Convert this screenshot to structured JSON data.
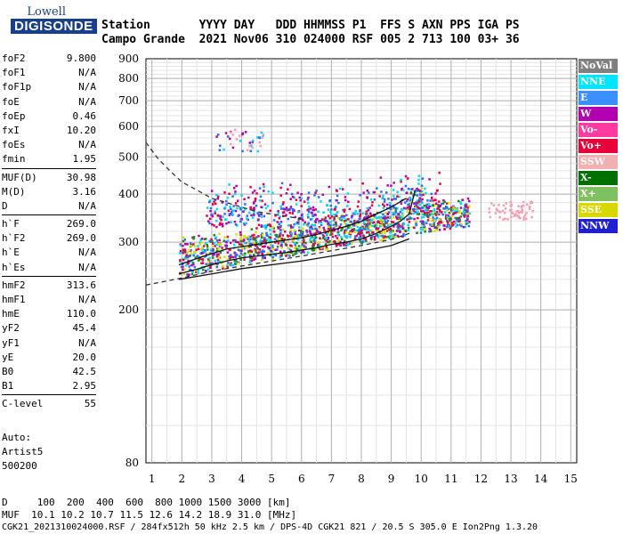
{
  "logo": {
    "line1": "Lowell",
    "line2": "DIGISONDE"
  },
  "header": {
    "line1": "Station       YYYY DAY   DDD HHMMSS P1  FFS S AXN PPS IGA PS",
    "line2": "Campo Grande  2021 Nov06 310 024000 RSF 005 2 713 100 03+ 36"
  },
  "params": [
    {
      "name": "foF2",
      "value": "9.800"
    },
    {
      "name": "foF1",
      "value": "N/A"
    },
    {
      "name": "foF1p",
      "value": "N/A"
    },
    {
      "name": "foE",
      "value": "N/A"
    },
    {
      "name": "foEp",
      "value": "0.46"
    },
    {
      "name": "fxI",
      "value": "10.20"
    },
    {
      "name": "foEs",
      "value": "N/A"
    },
    {
      "name": "fmin",
      "value": "1.95"
    },
    {
      "sep": true
    },
    {
      "name": "MUF(D)",
      "value": "30.98"
    },
    {
      "name": "M(D)",
      "value": "3.16"
    },
    {
      "name": "D",
      "value": "N/A"
    },
    {
      "sep": true
    },
    {
      "name": "h`F",
      "value": "269.0"
    },
    {
      "name": "h`F2",
      "value": "269.0"
    },
    {
      "name": "h`E",
      "value": "N/A"
    },
    {
      "name": "h`Es",
      "value": "N/A"
    },
    {
      "sep": true
    },
    {
      "name": "hmF2",
      "value": "313.6"
    },
    {
      "name": "hmF1",
      "value": "N/A"
    },
    {
      "name": "hmE",
      "value": "110.0"
    },
    {
      "name": "yF2",
      "value": "45.4"
    },
    {
      "name": "yF1",
      "value": "N/A"
    },
    {
      "name": "yE",
      "value": "20.0"
    },
    {
      "name": "B0",
      "value": "42.5"
    },
    {
      "name": "B1",
      "value": "2.95"
    },
    {
      "sep": true
    },
    {
      "name": "C-level",
      "value": "55"
    }
  ],
  "auto": {
    "line1": "Auto:",
    "line2": "Artist5",
    "line3": "500200"
  },
  "footer": {
    "line1": "D     100  200  400  600  800 1000 1500 3000 [km]",
    "line2": "MUF  10.1 10.2 10.7 11.5 12.6 14.2 18.9 31.0 [MHz]",
    "line3": "CGK21_2021310024000.RSF / 284fx512h 50 kHz 2.5 km / DPS-4D CGK21 821 / 20.5 S 305.0 E Ion2Png 1.3.20"
  },
  "legend": [
    {
      "label": "NoVal",
      "color": "#808080"
    },
    {
      "label": "NNE",
      "color": "#00e5ff"
    },
    {
      "label": "E",
      "color": "#3b8fff"
    },
    {
      "label": "W",
      "color": "#b000b0"
    },
    {
      "label": "Vo-",
      "color": "#ff3aa0"
    },
    {
      "label": "Vo+",
      "color": "#e8003a"
    },
    {
      "label": "SSW",
      "color": "#f2b0b0"
    },
    {
      "label": "X-",
      "color": "#007000"
    },
    {
      "label": "X+",
      "color": "#7fc060"
    },
    {
      "label": "SSE",
      "color": "#d8d800"
    },
    {
      "label": "NNW",
      "color": "#2020d0"
    }
  ],
  "chart_data": {
    "type": "scatter",
    "title": "",
    "xlabel": "",
    "ylabel": "",
    "xlim": [
      0.8,
      15.2
    ],
    "ylim": [
      80,
      900
    ],
    "xticks": [
      1,
      2,
      3,
      4,
      5,
      6,
      7,
      8,
      9,
      10,
      11,
      12,
      13,
      14,
      15
    ],
    "yticks": [
      80,
      200,
      300,
      400,
      500,
      600,
      700,
      800,
      900
    ],
    "log_y": true,
    "grid": true,
    "series": [
      {
        "name": "O-trace (virtual height)",
        "style": "solid",
        "x": [
          1.9,
          2.5,
          3.0,
          3.5,
          4.0,
          4.5,
          5.0,
          5.5,
          6.0,
          6.5,
          7.0,
          7.5,
          8.0,
          8.5,
          9.0,
          9.3,
          9.6,
          9.8
        ],
        "y": [
          248,
          255,
          262,
          268,
          273,
          276,
          279,
          282,
          286,
          290,
          296,
          300,
          306,
          316,
          330,
          340,
          355,
          410
        ]
      },
      {
        "name": "X-trace",
        "style": "solid",
        "x": [
          1.9,
          2.5,
          3.0,
          3.5,
          4.0,
          4.5,
          5.0,
          5.5,
          6.0,
          6.5,
          7.0,
          7.5,
          8.0,
          8.5,
          9.0,
          9.5
        ],
        "y": [
          262,
          272,
          280,
          288,
          292,
          296,
          300,
          304,
          308,
          314,
          322,
          330,
          340,
          355,
          370,
          390
        ]
      },
      {
        "name": "profile",
        "style": "solid",
        "x": [
          1.9,
          3,
          4,
          5,
          6,
          7,
          8,
          9,
          9.6
        ],
        "y": [
          240,
          248,
          256,
          262,
          268,
          276,
          284,
          294,
          306
        ]
      },
      {
        "name": "MUF upper",
        "style": "dashed",
        "x": [
          0.8,
          1.2,
          1.6,
          2.0,
          2.5,
          3.0,
          3.5,
          4.0,
          4.5,
          5.0,
          5.5,
          6.0
        ],
        "y": [
          545,
          495,
          460,
          430,
          410,
          390,
          380,
          370,
          360,
          355,
          350,
          345
        ]
      },
      {
        "name": "MUF lower",
        "style": "dashed",
        "x": [
          0.8,
          2,
          3,
          4,
          5,
          6,
          7,
          8,
          9,
          9.7
        ],
        "y": [
          232,
          242,
          252,
          260,
          268,
          276,
          285,
          294,
          305,
          318
        ]
      }
    ],
    "echo_clusters": [
      {
        "x": [
          1.9,
          11.6
        ],
        "y": [
          230,
          340
        ],
        "colors": [
          "yellow",
          "red",
          "blue",
          "magenta",
          "cyan",
          "green"
        ]
      },
      {
        "x": [
          2.8,
          10.6
        ],
        "y": [
          330,
          460
        ],
        "colors": [
          "blue",
          "magenta",
          "red",
          "cyan"
        ]
      },
      {
        "x": [
          3.1,
          4.8
        ],
        "y": [
          520,
          600
        ],
        "colors": [
          "pink",
          "magenta",
          "cyan",
          "blue"
        ]
      },
      {
        "x": [
          12.2,
          13.7
        ],
        "y": [
          345,
          385
        ],
        "colors": [
          "pink"
        ]
      }
    ]
  }
}
